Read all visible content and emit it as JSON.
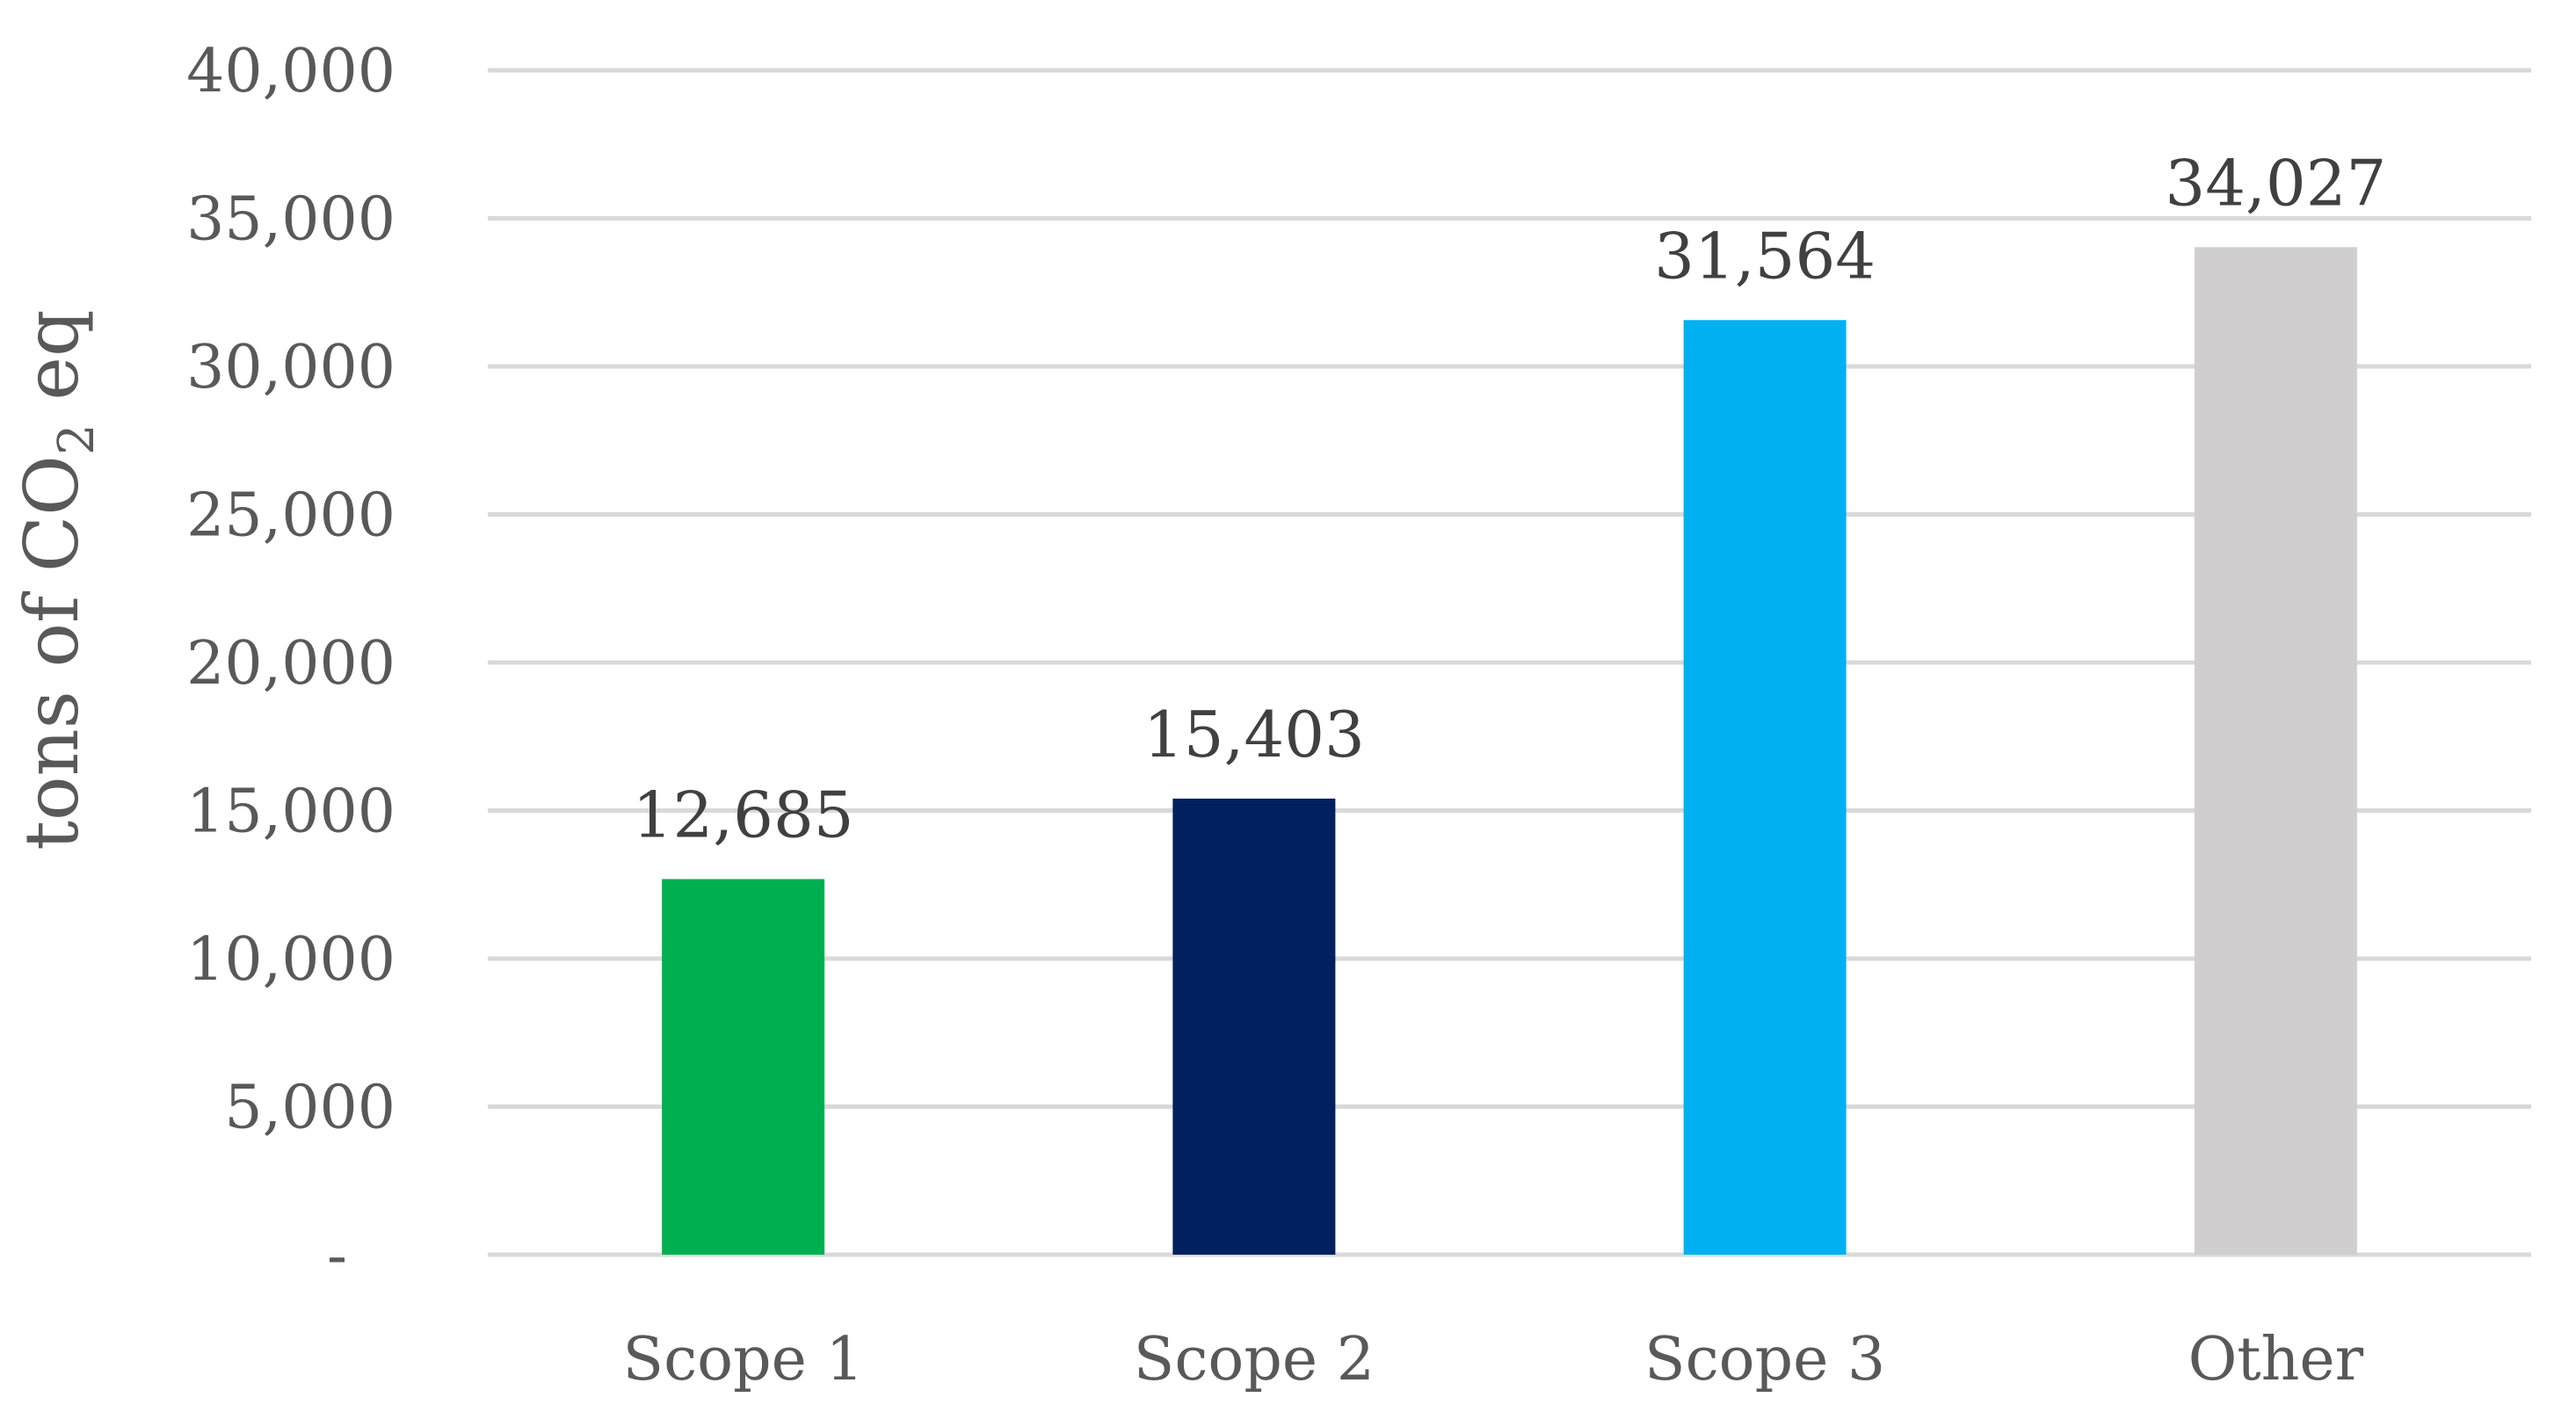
{
  "chart_data": {
    "type": "bar",
    "categories": [
      "Scope 1",
      "Scope 2",
      "Scope 3",
      "Other"
    ],
    "values": [
      12685,
      15403,
      31564,
      34027
    ],
    "data_labels": [
      "12,685",
      "15,403",
      "31,564",
      "34,027"
    ],
    "bar_colors": [
      "#00b050",
      "#002060",
      "#00b0f0",
      "#d0cece"
    ],
    "title": "",
    "xlabel": "",
    "ylabel": {
      "prefix": "tons of CO",
      "subscript": "2",
      "suffix": " eq"
    },
    "ylim": [
      0,
      40000
    ],
    "y_ticks": [
      0,
      5000,
      10000,
      15000,
      20000,
      25000,
      30000,
      35000,
      40000
    ],
    "y_tick_labels": [
      "-",
      "5,000",
      "10,000",
      "15,000",
      "20,000",
      "25,000",
      "30,000",
      "35,000",
      "40,000"
    ],
    "grid": true,
    "legend": "none"
  }
}
